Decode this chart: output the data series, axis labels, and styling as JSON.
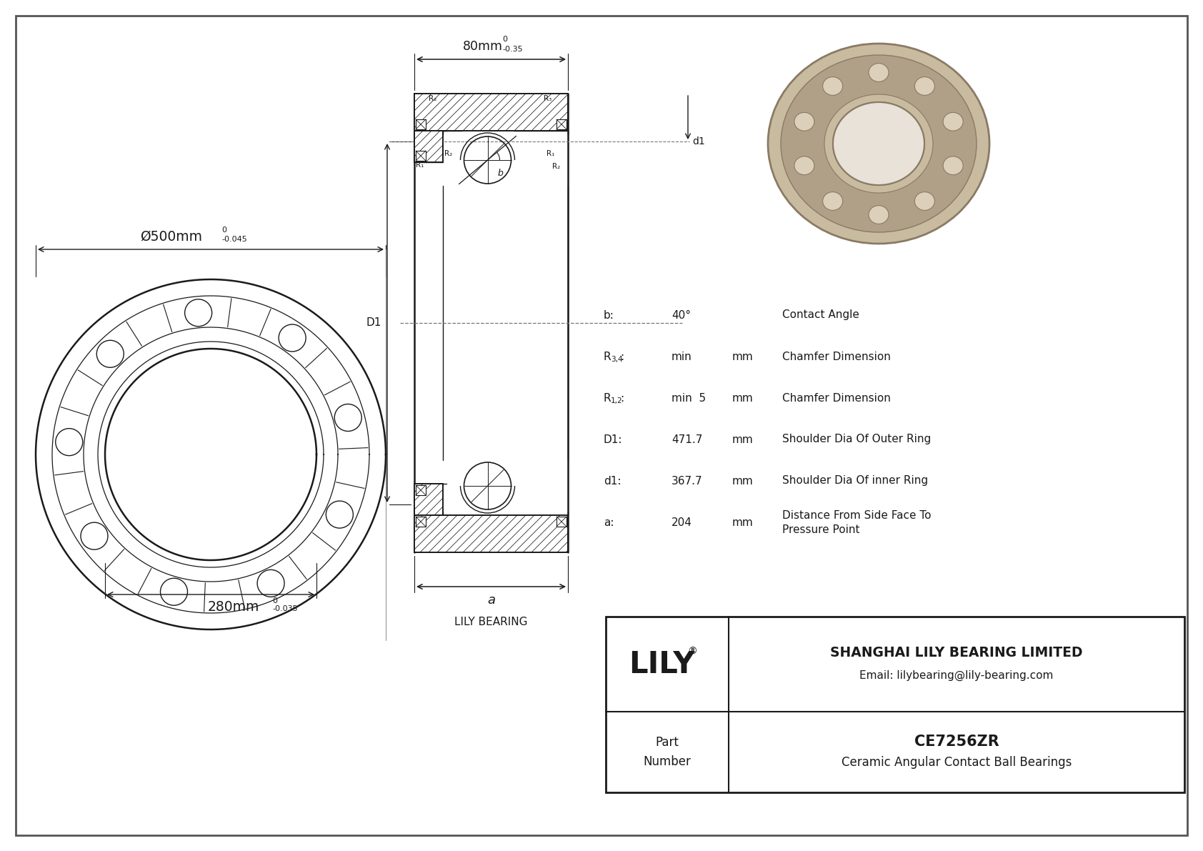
{
  "bg_color": "#ffffff",
  "line_color": "#1a1a1a",
  "title": "CE7256ZR",
  "subtitle": "Ceramic Angular Contact Ball Bearings",
  "company": "SHANGHAI LILY BEARING LIMITED",
  "email": "Email: lilybearing@lily-bearing.com",
  "part_label": "Part\nNumber",
  "brand_label": "LILY BEARING",
  "dim_outer_main": "Ø500mm",
  "dim_outer_tol_top": "0",
  "dim_outer_tol_bot": "-0.045",
  "dim_inner_main": "280mm",
  "dim_inner_tol_top": "0",
  "dim_inner_tol_bot": "-0.035",
  "dim_width_main": "80mm",
  "dim_width_tol_top": "0",
  "dim_width_tol_bot": "-0.35",
  "specs": [
    {
      "label": "b:",
      "val": "40°",
      "unit": "",
      "desc": "Contact Angle"
    },
    {
      "label": "R3,4:",
      "val": "min",
      "unit": "mm",
      "desc": "Chamfer Dimension"
    },
    {
      "label": "R1,2:",
      "val": "min  5",
      "unit": "mm",
      "desc": "Chamfer Dimension"
    },
    {
      "label": "D1:",
      "val": "471.7",
      "unit": "mm",
      "desc": "Shoulder Dia Of Outer Ring"
    },
    {
      "label": "d1:",
      "val": "367.7",
      "unit": "mm",
      "desc": "Shoulder Dia Of inner Ring"
    },
    {
      "label": "a:",
      "val": "204",
      "unit": "mm",
      "desc": "Distance From Side Face To\nPressure Point"
    }
  ],
  "photo_color": "#c8bba0",
  "photo_dark": "#8a7a65",
  "photo_mid": "#b0a088",
  "photo_light": "#ddd0bb",
  "photo_hole": "#e8e2d8"
}
